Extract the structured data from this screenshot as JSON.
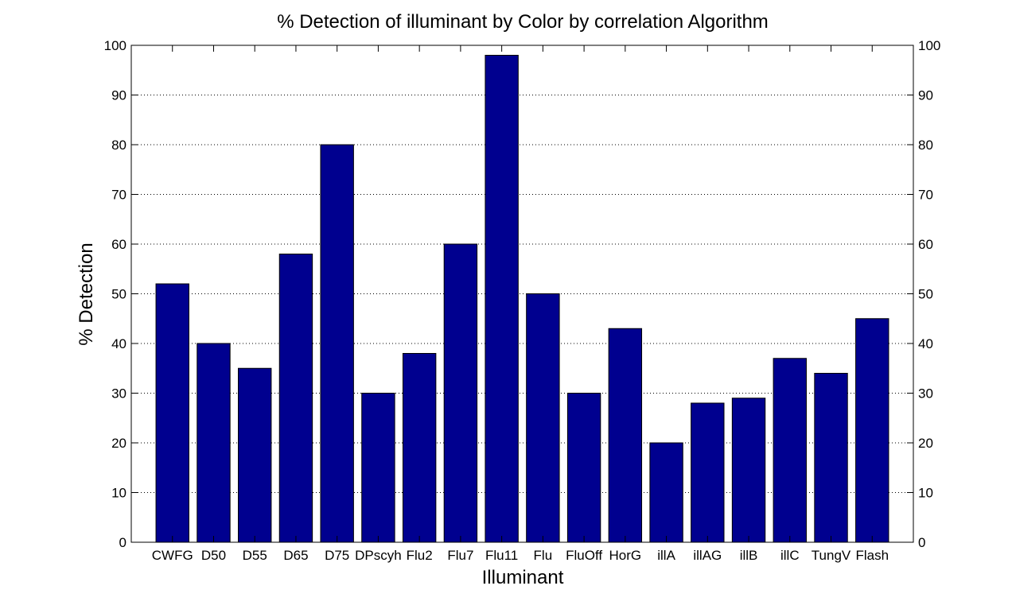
{
  "chart_data": {
    "type": "bar",
    "title": "% Detection of illuminant by Color by correlation Algorithm",
    "xlabel": "Illuminant",
    "ylabel": "% Detection",
    "categories": [
      "CWFG",
      "D50",
      "D55",
      "D65",
      "D75",
      "DPscyh",
      "Flu2",
      "Flu7",
      "Flu11",
      "Flu",
      "FluOff",
      "HorG",
      "illA",
      "illAG",
      "illB",
      "illC",
      "TungV",
      "Flash"
    ],
    "values": [
      52,
      40,
      35,
      58,
      80,
      30,
      38,
      60,
      98,
      50,
      30,
      43,
      20,
      28,
      29,
      37,
      34,
      45
    ],
    "ylim": [
      0,
      100
    ],
    "yticks": [
      "0",
      "10",
      "20",
      "30",
      "40",
      "50",
      "60",
      "70",
      "80",
      "90",
      "100"
    ],
    "grid": "y-dotted",
    "bar_color": "#00008F"
  }
}
